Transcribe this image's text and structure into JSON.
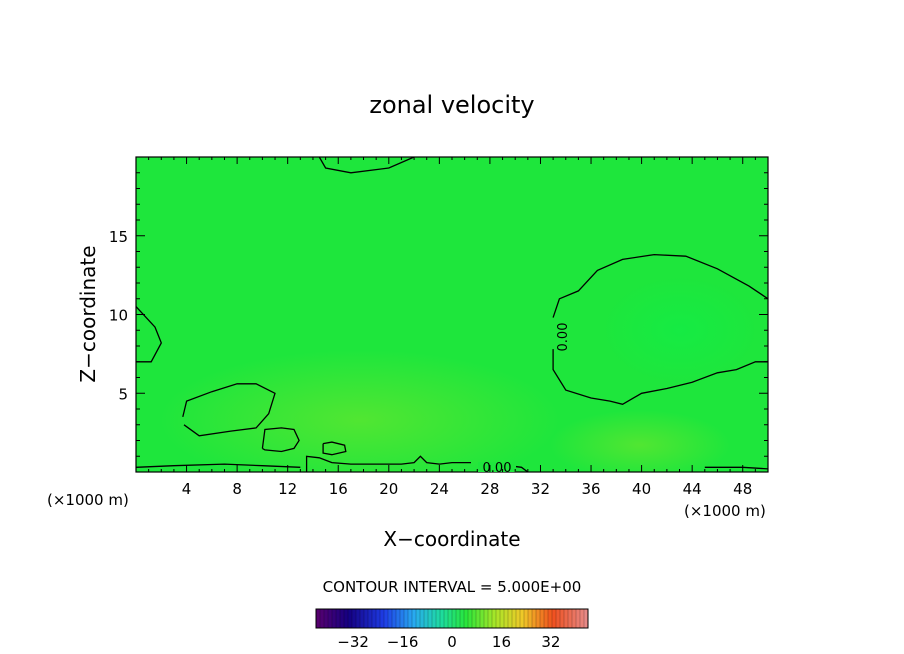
{
  "chart_data": {
    "type": "heatmap",
    "title": "zonal velocity",
    "xlabel": "X−coordinate",
    "ylabel": "Z−coordinate",
    "x_unit_left": "(×1000 m)",
    "x_unit_right": "(×1000 m)",
    "xlim": [
      0,
      50
    ],
    "ylim": [
      0,
      20
    ],
    "x_ticks": [
      4,
      8,
      12,
      16,
      20,
      24,
      28,
      32,
      36,
      40,
      44,
      48
    ],
    "x_tick_labels": [
      "4",
      "8",
      "12",
      "16",
      "20",
      "24",
      "28",
      "32",
      "36",
      "40",
      "44",
      "48"
    ],
    "y_ticks": [
      5,
      10,
      15
    ],
    "y_tick_labels": [
      "5",
      "10",
      "15"
    ],
    "field_color": "#1ee63c",
    "contour_interval_text": "CONTOUR INTERVAL = 5.000E+00",
    "contour_level_label": "0.00",
    "contours": [
      {
        "level": 0,
        "points": [
          [
            33,
            9.8
          ],
          [
            33.5,
            11
          ],
          [
            35,
            11.5
          ],
          [
            36.5,
            12.8
          ],
          [
            38.5,
            13.5
          ],
          [
            41,
            13.8
          ],
          [
            43.5,
            13.7
          ],
          [
            46,
            12.9
          ],
          [
            48.5,
            11.8
          ],
          [
            50,
            11
          ]
        ]
      },
      {
        "level": 0,
        "points": [
          [
            33,
            7.8
          ],
          [
            33,
            6.5
          ],
          [
            34,
            5.2
          ],
          [
            36,
            4.7
          ],
          [
            37.5,
            4.5
          ],
          [
            38.5,
            4.3
          ],
          [
            40,
            5
          ],
          [
            42,
            5.3
          ],
          [
            44,
            5.7
          ],
          [
            46,
            6.3
          ],
          [
            47.5,
            6.5
          ],
          [
            49,
            7
          ],
          [
            50,
            7
          ]
        ]
      },
      {
        "level": 0,
        "points": [
          [
            0,
            10.5
          ],
          [
            1.5,
            9.2
          ],
          [
            2,
            8.2
          ],
          [
            1.2,
            7
          ],
          [
            0,
            7
          ]
        ]
      },
      {
        "level": 0,
        "points": [
          [
            3.7,
            3.5
          ],
          [
            4,
            4.5
          ],
          [
            6,
            5.1
          ],
          [
            8,
            5.6
          ],
          [
            9.5,
            5.6
          ],
          [
            11,
            5
          ],
          [
            10.5,
            3.7
          ],
          [
            9.5,
            2.8
          ],
          [
            7.5,
            2.6
          ],
          [
            5,
            2.3
          ],
          [
            3.8,
            3
          ]
        ]
      },
      {
        "level": 0,
        "points": [
          [
            10,
            1.5
          ],
          [
            10.2,
            2.7
          ],
          [
            11.5,
            2.8
          ],
          [
            12.5,
            2.7
          ],
          [
            12.9,
            2.0
          ],
          [
            12.5,
            1.5
          ],
          [
            11.5,
            1.3
          ],
          [
            10.2,
            1.4
          ],
          [
            10,
            1.5
          ]
        ]
      },
      {
        "level": 0,
        "points": [
          [
            14.8,
            1.8
          ],
          [
            15.5,
            1.9
          ],
          [
            16.5,
            1.7
          ],
          [
            16.6,
            1.3
          ],
          [
            15.5,
            1.1
          ],
          [
            14.8,
            1.2
          ],
          [
            14.8,
            1.8
          ]
        ]
      },
      {
        "level": 0,
        "points": [
          [
            13.5,
            0
          ],
          [
            13.5,
            1
          ],
          [
            14.5,
            0.9
          ],
          [
            15.5,
            0.6
          ],
          [
            17,
            0.5
          ],
          [
            19,
            0.5
          ],
          [
            21,
            0.5
          ],
          [
            22,
            0.6
          ],
          [
            22.5,
            1
          ],
          [
            23,
            0.6
          ],
          [
            24,
            0.5
          ],
          [
            25,
            0.6
          ],
          [
            26.5,
            0.6
          ]
        ]
      },
      {
        "level": 0,
        "points": [
          [
            29.5,
            0.4
          ],
          [
            30.5,
            0.3
          ],
          [
            31,
            0
          ]
        ]
      },
      {
        "level": 0,
        "points": [
          [
            14.5,
            20
          ],
          [
            15,
            19.3
          ],
          [
            17,
            19
          ],
          [
            20,
            19.3
          ],
          [
            22,
            20
          ]
        ]
      },
      {
        "level": 0,
        "points": [
          [
            0,
            0.3
          ],
          [
            3,
            0.4
          ],
          [
            7,
            0.5
          ],
          [
            10,
            0.4
          ],
          [
            13,
            0.3
          ]
        ]
      },
      {
        "level": 0,
        "points": [
          [
            45,
            0.3
          ],
          [
            48,
            0.3
          ],
          [
            50,
            0.2
          ]
        ]
      }
    ],
    "colorbar": {
      "vmin": -44,
      "vmax": 44,
      "ticks": [
        -32,
        -16,
        0,
        16,
        32
      ],
      "tick_labels": [
        "−32",
        "−16",
        "0",
        "16",
        "32"
      ]
    }
  }
}
